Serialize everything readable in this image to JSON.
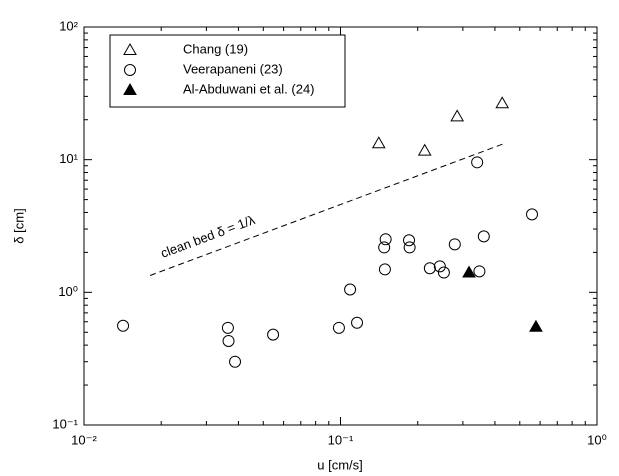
{
  "chart_data": {
    "type": "scatter",
    "x_label": "u [cm/s]",
    "y_label": "δ [cm]",
    "x_log": true,
    "y_log": true,
    "xlim": [
      0.01,
      1
    ],
    "ylim": [
      0.1,
      100
    ],
    "xticks": [
      {
        "value": 0.01,
        "label": "10⁻²"
      },
      {
        "value": 0.1,
        "label": "10⁻¹"
      },
      {
        "value": 1,
        "label": "10⁰"
      }
    ],
    "yticks": [
      {
        "value": 0.1,
        "label": "10⁻¹"
      },
      {
        "value": 1,
        "label": "10⁰"
      },
      {
        "value": 10,
        "label": "10¹"
      },
      {
        "value": 100,
        "label": "10²"
      }
    ],
    "legend_position": "upper-left",
    "series": [
      {
        "name": "Chang (19)",
        "marker": "triangle-open",
        "color": "#000000",
        "x": [
          0.141,
          0.213,
          0.285,
          0.427
        ],
        "y": [
          13.3,
          11.7,
          21.2,
          26.6
        ]
      },
      {
        "name": "Veerapaneni (23)",
        "marker": "circle-open",
        "color": "#000000",
        "x": [
          0.0142,
          0.0364,
          0.0366,
          0.0388,
          0.0546,
          0.0986,
          0.109,
          0.116,
          0.148,
          0.15,
          0.149,
          0.185,
          0.186,
          0.223,
          0.244,
          0.253,
          0.279,
          0.341,
          0.348,
          0.362,
          0.558
        ],
        "y": [
          0.56,
          0.54,
          0.43,
          0.3,
          0.48,
          0.54,
          1.05,
          0.59,
          2.18,
          2.51,
          1.49,
          2.47,
          2.18,
          1.52,
          1.57,
          1.41,
          2.3,
          9.55,
          1.44,
          2.64,
          3.87
        ]
      },
      {
        "name": "Al-Abduwani et al. (24)",
        "marker": "triangle-filled",
        "color": "#000000",
        "x": [
          0.317,
          0.578
        ],
        "y": [
          1.41,
          0.55
        ]
      }
    ],
    "reference_line": {
      "label": "clean bed δ = 1/λ",
      "x": [
        0.0181,
        0.438
      ],
      "y": [
        1.34,
        13.3
      ],
      "dash": "6,4"
    }
  }
}
